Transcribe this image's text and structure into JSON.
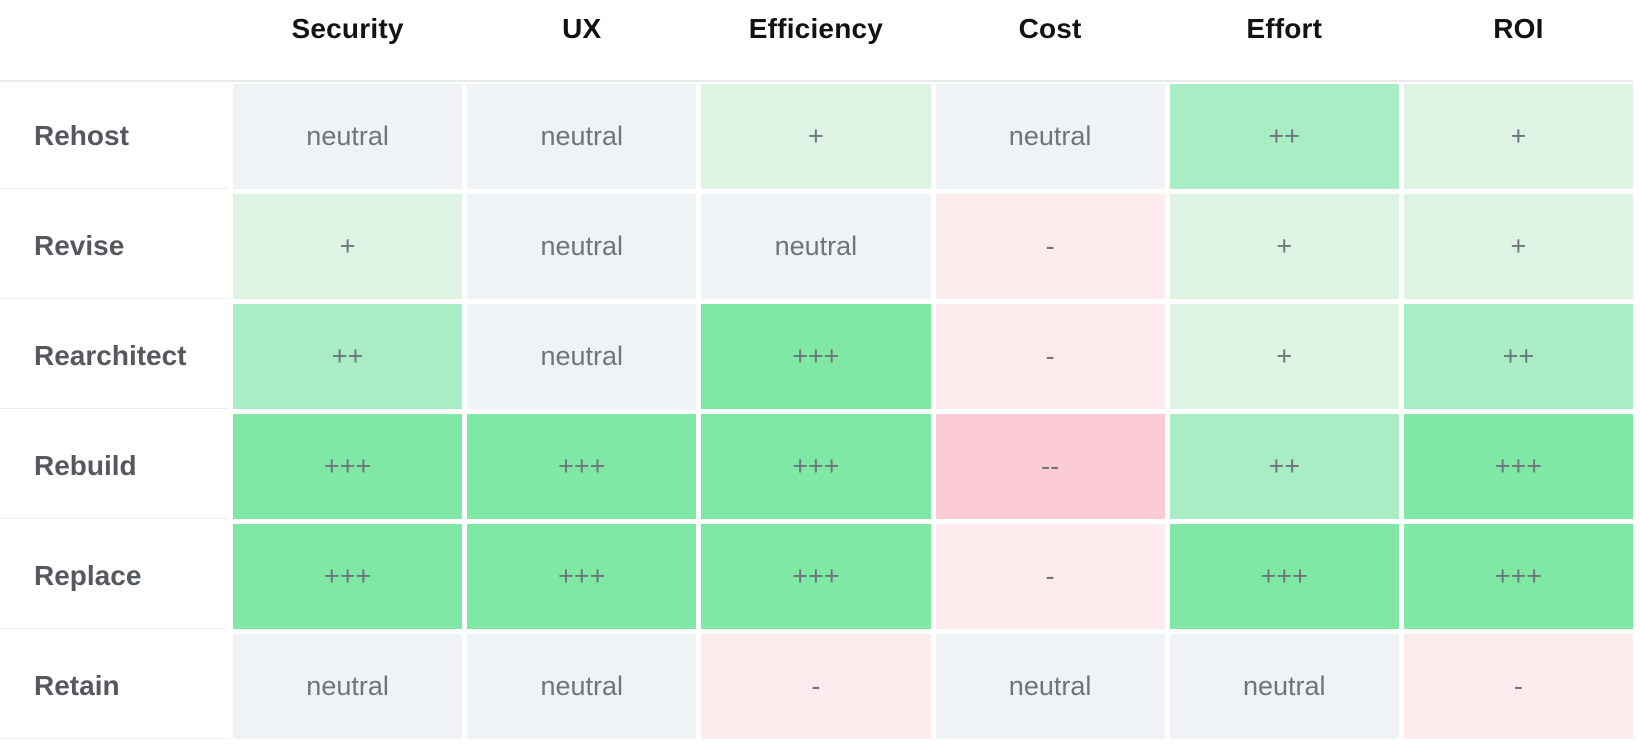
{
  "chart_data": {
    "type": "heatmap",
    "columns": [
      "Security",
      "UX",
      "Efficiency",
      "Cost",
      "Effort",
      "ROI"
    ],
    "rows": [
      {
        "label": "Rehost",
        "cells": [
          {
            "text": "neutral",
            "level": "neutral"
          },
          {
            "text": "neutral",
            "level": "neutral"
          },
          {
            "text": "+",
            "level": "plus1"
          },
          {
            "text": "neutral",
            "level": "neutral"
          },
          {
            "text": "++",
            "level": "plus2"
          },
          {
            "text": "+",
            "level": "plus1"
          }
        ]
      },
      {
        "label": "Revise",
        "cells": [
          {
            "text": "+",
            "level": "plus1"
          },
          {
            "text": "neutral",
            "level": "neutral"
          },
          {
            "text": "neutral",
            "level": "neutral"
          },
          {
            "text": "-",
            "level": "minus1"
          },
          {
            "text": "+",
            "level": "plus1"
          },
          {
            "text": "+",
            "level": "plus1"
          }
        ]
      },
      {
        "label": "Rearchitect",
        "cells": [
          {
            "text": "++",
            "level": "plus2"
          },
          {
            "text": "neutral",
            "level": "neutral"
          },
          {
            "text": "+++",
            "level": "plus3"
          },
          {
            "text": "-",
            "level": "minus1"
          },
          {
            "text": "+",
            "level": "plus1"
          },
          {
            "text": "++",
            "level": "plus2"
          }
        ]
      },
      {
        "label": "Rebuild",
        "cells": [
          {
            "text": "+++",
            "level": "plus3"
          },
          {
            "text": "+++",
            "level": "plus3"
          },
          {
            "text": "+++",
            "level": "plus3"
          },
          {
            "text": "--",
            "level": "minus2"
          },
          {
            "text": "++",
            "level": "plus2"
          },
          {
            "text": "+++",
            "level": "plus3"
          }
        ]
      },
      {
        "label": "Replace",
        "cells": [
          {
            "text": "+++",
            "level": "plus3"
          },
          {
            "text": "+++",
            "level": "plus3"
          },
          {
            "text": "+++",
            "level": "plus3"
          },
          {
            "text": "-",
            "level": "minus1"
          },
          {
            "text": "+++",
            "level": "plus3"
          },
          {
            "text": "+++",
            "level": "plus3"
          }
        ]
      },
      {
        "label": "Retain",
        "cells": [
          {
            "text": "neutral",
            "level": "neutral"
          },
          {
            "text": "neutral",
            "level": "neutral"
          },
          {
            "text": "-",
            "level": "minus1"
          },
          {
            "text": "neutral",
            "level": "neutral"
          },
          {
            "text": "neutral",
            "level": "neutral"
          },
          {
            "text": "-",
            "level": "minus1"
          }
        ]
      }
    ],
    "legend_position": "none",
    "grid": false
  },
  "colors": {
    "neutral_bg": "#eff3f6",
    "plus1_bg": "#ddf4e5",
    "plus2_bg": "#a9edc4",
    "plus3_bg": "#80e8a5",
    "minus1_bg": "#fdebed",
    "minus2_bg": "#fbccd5",
    "cell_text": "#6e757c",
    "row_label_text": "#55595d",
    "header_text": "#101214",
    "divider": "#e7e9ea"
  }
}
